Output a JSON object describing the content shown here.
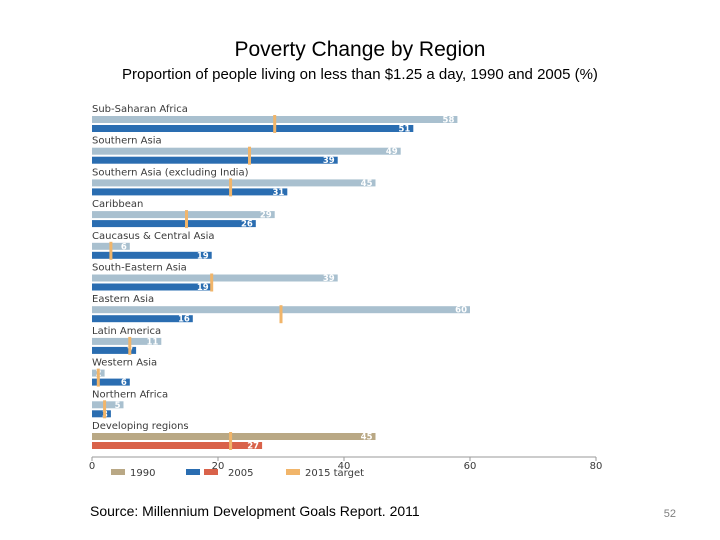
{
  "slide": {
    "title": "Poverty Change by Region",
    "subtitle": "Proportion of people living on less than $1.25 a day, 1990 and 2005 (%)",
    "source": "Source: Millennium Development Goals Report. 2011",
    "page_number": "52"
  },
  "chart_data": {
    "type": "bar",
    "orientation": "horizontal",
    "categories": [
      "Sub-Saharan Africa",
      "Southern Asia",
      "Southern Asia (excluding India)",
      "Caribbean",
      "Caucasus & Central Asia",
      "South-Eastern Asia",
      "Eastern Asia",
      "Latin America",
      "Western Asia",
      "Northern Africa",
      "Developing regions"
    ],
    "series": [
      {
        "name": "1990",
        "values": [
          58,
          49,
          45,
          29,
          6,
          39,
          60,
          11,
          2,
          5,
          45
        ]
      },
      {
        "name": "2005",
        "values": [
          51,
          39,
          31,
          26,
          19,
          19,
          16,
          7,
          6,
          3,
          27
        ]
      }
    ],
    "targets": [
      29,
      25,
      22,
      15,
      3,
      19,
      30,
      6,
      1,
      2,
      22
    ],
    "target_label": "2015 target",
    "xlim": [
      0,
      80
    ],
    "xticks": [
      0,
      20,
      40,
      60,
      80
    ],
    "legend_position": "bottom",
    "colors": {
      "bar_1990": "#a9c0cf",
      "bar_2005": "#2a6db1",
      "bar_1990_aggregate": "#b9a885",
      "bar_2005_aggregate": "#d9624a",
      "target": "#f1b56a",
      "axis": "#9a9a9a",
      "label_text": "#3a3a3a"
    }
  }
}
